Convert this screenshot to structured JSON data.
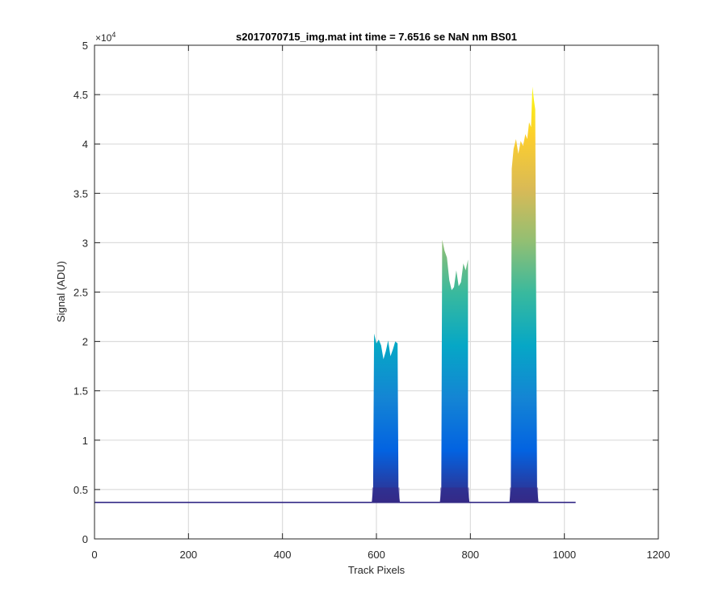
{
  "chart_data": {
    "type": "area",
    "title": "s2017070715_img.mat int time = 7.6516 se  NaN nm BS01",
    "xlabel": "Track Pixels",
    "ylabel": "Signal (ADU)",
    "xlim": [
      0,
      1200
    ],
    "ylim": [
      0,
      50000
    ],
    "y_exponent_label": "×10^4",
    "y_exponent_base": "×10",
    "y_exponent_power": "4",
    "grid": true,
    "xticks": [
      0,
      200,
      400,
      600,
      800,
      1000,
      1200
    ],
    "xtick_labels": [
      "0",
      "200",
      "400",
      "600",
      "800",
      "1000",
      "1200"
    ],
    "yticks": [
      0,
      5000,
      10000,
      15000,
      20000,
      25000,
      30000,
      35000,
      40000,
      45000,
      50000
    ],
    "ytick_labels": [
      "0",
      "0.5",
      "1",
      "1.5",
      "2",
      "2.5",
      "3",
      "3.5",
      "4",
      "4.5",
      "5"
    ],
    "colormap": [
      "#352a87",
      "#0363e1",
      "#1485d4",
      "#06a7c6",
      "#38b99e",
      "#92bf73",
      "#d9ba56",
      "#fcce2e",
      "#f9fb0e"
    ],
    "baseline": 3700,
    "x_extent": [
      0,
      1024
    ],
    "peaks": [
      {
        "x_start": 590,
        "x_end": 650,
        "upper_envelope": [
          [
            595,
            20800
          ],
          [
            600,
            19800
          ],
          [
            605,
            20200
          ],
          [
            610,
            19600
          ],
          [
            615,
            18200
          ],
          [
            620,
            19000
          ],
          [
            625,
            20100
          ],
          [
            630,
            18500
          ],
          [
            635,
            19200
          ],
          [
            640,
            20000
          ],
          [
            645,
            19800
          ]
        ]
      },
      {
        "x_start": 735,
        "x_end": 798,
        "upper_envelope": [
          [
            740,
            30300
          ],
          [
            745,
            29200
          ],
          [
            750,
            28500
          ],
          [
            755,
            26200
          ],
          [
            760,
            25200
          ],
          [
            765,
            25500
          ],
          [
            770,
            27200
          ],
          [
            775,
            25600
          ],
          [
            780,
            26000
          ],
          [
            785,
            27900
          ],
          [
            790,
            27200
          ],
          [
            795,
            28300
          ]
        ]
      },
      {
        "x_start": 883,
        "x_end": 945,
        "upper_envelope": [
          [
            888,
            37500
          ],
          [
            892,
            39500
          ],
          [
            897,
            40500
          ],
          [
            902,
            39000
          ],
          [
            907,
            40300
          ],
          [
            912,
            39800
          ],
          [
            917,
            41000
          ],
          [
            921,
            40500
          ],
          [
            925,
            42200
          ],
          [
            929,
            41700
          ],
          [
            932,
            45800
          ],
          [
            935,
            44500
          ],
          [
            938,
            43500
          ]
        ]
      }
    ]
  }
}
